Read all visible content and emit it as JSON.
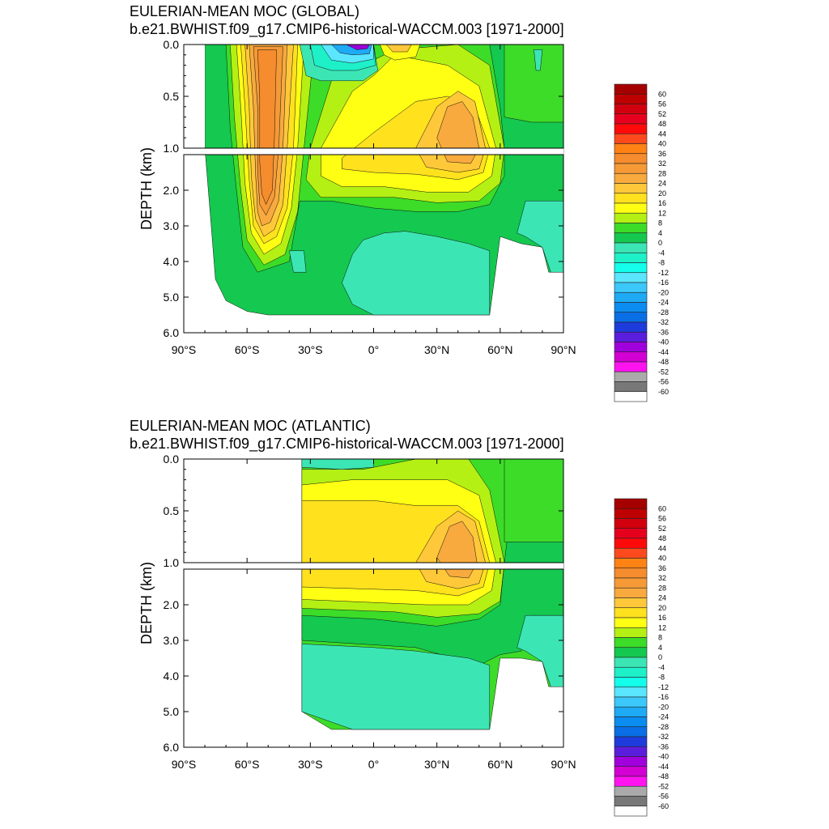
{
  "chart_data": [
    {
      "type": "heatmap",
      "title": "EULERIAN-MEAN MOC (GLOBAL)",
      "subtitle": "b.e21.BWHIST.f09_g17.CMIP6-historical-WACCM.003 [1971-2000]",
      "ylabel": "DEPTH (km)",
      "xlabel": "",
      "xlim": [
        -90,
        90
      ],
      "ylim": [
        6.0,
        0.0
      ],
      "y_split_km": 1.0,
      "x_ticks": [
        "90°S",
        "60°S",
        "30°S",
        "0°",
        "30°N",
        "60°N",
        "90°N"
      ],
      "y_ticks_upper": [
        "0.0",
        "0.5",
        "1.0"
      ],
      "y_ticks_lower": [
        "2.0",
        "3.0",
        "4.0",
        "5.0",
        "6.0"
      ],
      "colorbar_labels": [
        "60",
        "56",
        "52",
        "48",
        "44",
        "40",
        "36",
        "32",
        "28",
        "24",
        "20",
        "16",
        "12",
        "8",
        "4",
        "0",
        "-4",
        "-8",
        "-12",
        "-16",
        "-20",
        "-24",
        "-28",
        "-32",
        "-36",
        "-40",
        "-44",
        "-48",
        "-52",
        "-56",
        "-60"
      ],
      "features": [
        {
          "lat_range": [
            -58,
            -40
          ],
          "depth_range": [
            0.0,
            4.2
          ],
          "max_value": 32
        },
        {
          "lat_range": [
            -20,
            0
          ],
          "depth_range": [
            0.0,
            0.1
          ],
          "min_value": -48
        },
        {
          "lat_range": [
            25,
            50
          ],
          "depth_range": [
            0.5,
            1.8
          ],
          "max_value": 24
        },
        {
          "lat_range": [
            0,
            55
          ],
          "depth_range": [
            3.3,
            5.5
          ],
          "value": -4
        }
      ]
    },
    {
      "type": "heatmap",
      "title": "EULERIAN-MEAN MOC (ATLANTIC)",
      "subtitle": "b.e21.BWHIST.f09_g17.CMIP6-historical-WACCM.003 [1971-2000]",
      "ylabel": "DEPTH (km)",
      "xlabel": "",
      "xlim": [
        -90,
        90
      ],
      "ylim": [
        6.0,
        0.0
      ],
      "y_split_km": 1.0,
      "x_ticks": [
        "90°S",
        "60°S",
        "30°S",
        "0°",
        "30°N",
        "60°N",
        "90°N"
      ],
      "y_ticks_upper": [
        "0.0",
        "0.5",
        "1.0"
      ],
      "y_ticks_lower": [
        "2.0",
        "3.0",
        "4.0",
        "5.0",
        "6.0"
      ],
      "colorbar_labels": [
        "60",
        "56",
        "52",
        "48",
        "44",
        "40",
        "36",
        "32",
        "28",
        "24",
        "20",
        "16",
        "12",
        "8",
        "4",
        "0",
        "-4",
        "-8",
        "-12",
        "-16",
        "-20",
        "-24",
        "-28",
        "-32",
        "-36",
        "-40",
        "-44",
        "-48",
        "-52",
        "-56",
        "-60"
      ],
      "features": [
        {
          "lat_range": [
            -33,
            60
          ],
          "depth_range": [
            0.1,
            2.4
          ],
          "value": 16
        },
        {
          "lat_range": [
            25,
            50
          ],
          "depth_range": [
            0.6,
            1.8
          ],
          "max_value": 24
        },
        {
          "lat_range": [
            -33,
            50
          ],
          "depth_range": [
            3.3,
            5.5
          ],
          "value": -4
        }
      ]
    }
  ],
  "colorbar_colors": [
    "#A50000",
    "#BE0000",
    "#D2000E",
    "#E6001E",
    "#FF0A0A",
    "#FF4A1E",
    "#FF8214",
    "#F58C2D",
    "#F59A37",
    "#F8AA3E",
    "#FFC83A",
    "#FFE11E",
    "#FFFF14",
    "#B4F014",
    "#3CDC28",
    "#14C850",
    "#3CE6B4",
    "#1EF0C8",
    "#14FFEB",
    "#5AE6FF",
    "#3CC8FA",
    "#1EAAF5",
    "#0A8CF0",
    "#0A6EE6",
    "#1E3CDC",
    "#5A1EDC",
    "#A000DC",
    "#D200D2",
    "#FF14F0",
    "#AAAAAA",
    "#787878",
    "#FFFFFF"
  ]
}
